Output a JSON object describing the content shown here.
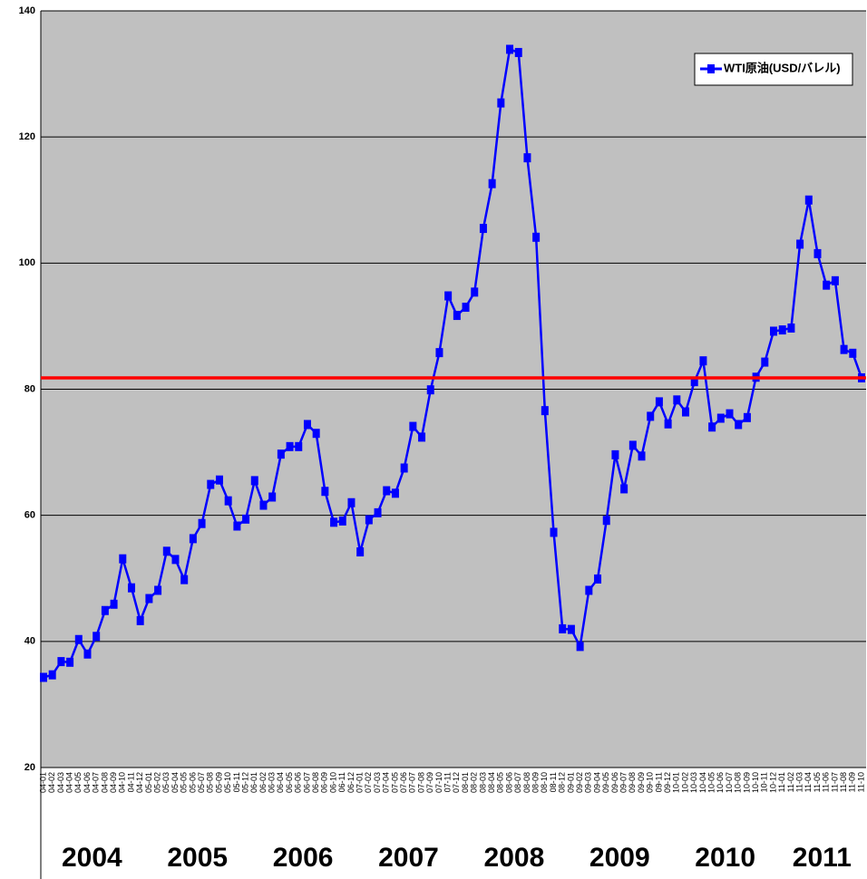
{
  "chart_data": {
    "type": "line",
    "categories": [
      "04-01",
      "04-02",
      "04-03",
      "04-04",
      "04-05",
      "04-06",
      "04-07",
      "04-08",
      "04-09",
      "04-10",
      "04-11",
      "04-12",
      "05-01",
      "05-02",
      "05-03",
      "05-04",
      "05-05",
      "05-06",
      "05-07",
      "05-08",
      "05-09",
      "05-10",
      "05-11",
      "05-12",
      "06-01",
      "06-02",
      "06-03",
      "06-04",
      "06-05",
      "06-06",
      "06-07",
      "06-08",
      "06-09",
      "06-10",
      "06-11",
      "06-12",
      "07-01",
      "07-02",
      "07-03",
      "07-04",
      "07-05",
      "07-06",
      "07-07",
      "07-08",
      "07-09",
      "07-10",
      "07-11",
      "07-12",
      "08-01",
      "08-02",
      "08-03",
      "08-04",
      "08-05",
      "08-06",
      "08-07",
      "08-08",
      "08-09",
      "08-10",
      "08-11",
      "08-12",
      "09-01",
      "09-02",
      "09-03",
      "09-04",
      "09-05",
      "09-06",
      "09-07",
      "09-08",
      "09-09",
      "09-10",
      "09-11",
      "09-12",
      "10-01",
      "10-02",
      "10-03",
      "10-04",
      "10-05",
      "10-06",
      "10-07",
      "10-08",
      "10-09",
      "10-10",
      "10-11",
      "10-12",
      "11-01",
      "11-02",
      "11-03",
      "11-04",
      "11-05",
      "11-06",
      "11-07",
      "11-08",
      "11-09",
      "11-10"
    ],
    "series": [
      {
        "name": "WTI原油(USD/バレル)",
        "color": "#0000ff",
        "values": [
          34.3,
          34.7,
          36.8,
          36.7,
          40.3,
          38.0,
          40.8,
          44.9,
          45.9,
          53.1,
          48.5,
          43.3,
          46.8,
          48.1,
          54.3,
          53.0,
          49.8,
          56.3,
          58.7,
          64.9,
          65.6,
          62.3,
          58.3,
          59.4,
          65.5,
          61.6,
          62.9,
          69.7,
          70.9,
          70.9,
          74.4,
          73.0,
          63.8,
          58.9,
          59.1,
          62.0,
          54.2,
          59.3,
          60.4,
          63.9,
          63.5,
          67.5,
          74.1,
          72.4,
          79.9,
          85.8,
          94.8,
          91.7,
          93.0,
          95.4,
          105.5,
          112.6,
          125.4,
          133.9,
          133.4,
          116.7,
          104.1,
          76.6,
          57.3,
          42.0,
          41.9,
          39.2,
          48.1,
          49.9,
          59.2,
          69.6,
          64.2,
          71.1,
          69.4,
          75.7,
          78.0,
          74.5,
          78.3,
          76.4,
          81.2,
          84.5,
          74.0,
          75.4,
          76.1,
          74.4,
          75.5,
          81.9,
          84.3,
          89.2,
          89.4,
          89.7,
          103.0,
          110.0,
          101.5,
          96.5,
          97.2,
          86.3,
          85.7,
          81.8
        ]
      }
    ],
    "reference_line": {
      "value": 81.8,
      "color": "#ff0000"
    },
    "x_group_labels": [
      "2004",
      "2005",
      "2006",
      "2007",
      "2008",
      "2009",
      "2010",
      "2011"
    ],
    "ylim": [
      20,
      140
    ],
    "yticks": [
      20,
      40,
      60,
      80,
      100,
      120,
      140
    ],
    "grid": true,
    "legend": "top-right"
  }
}
